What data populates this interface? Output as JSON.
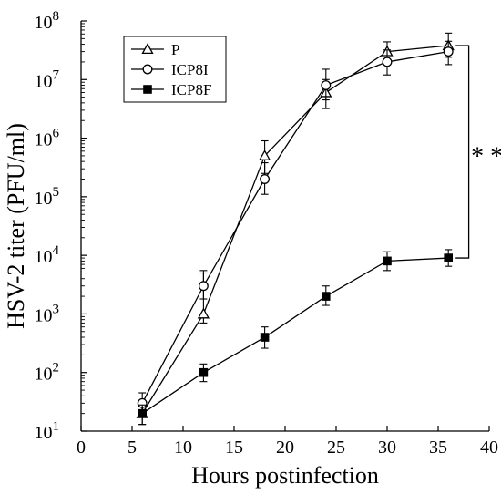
{
  "chart_data": {
    "type": "line",
    "xlabel": "Hours postinfection",
    "ylabel": "HSV-2 titer (PFU/ml)",
    "x_scale": "linear",
    "y_scale": "log",
    "xlim": [
      0,
      40
    ],
    "ylim": [
      10,
      100000000
    ],
    "x_ticks": [
      0,
      5,
      10,
      15,
      20,
      25,
      30,
      35,
      40
    ],
    "y_ticks": [
      {
        "value": 10,
        "base": "10",
        "exp": "1"
      },
      {
        "value": 100,
        "base": "10",
        "exp": "2"
      },
      {
        "value": 1000,
        "base": "10",
        "exp": "3"
      },
      {
        "value": 10000,
        "base": "10",
        "exp": "4"
      },
      {
        "value": 100000,
        "base": "10",
        "exp": "5"
      },
      {
        "value": 1000000,
        "base": "10",
        "exp": "6"
      },
      {
        "value": 10000000,
        "base": "10",
        "exp": "7"
      },
      {
        "value": 100000000,
        "base": "10",
        "exp": "8"
      }
    ],
    "grid": false,
    "legend_position": "top-left",
    "x": [
      6,
      12,
      18,
      24,
      30,
      36
    ],
    "series": [
      {
        "name": "P",
        "marker": "triangle-open",
        "values": [
          20,
          1000,
          500000,
          6000000,
          30000000,
          38000000
        ],
        "error_low": [
          13,
          700,
          250000,
          3200000,
          20000000,
          24000000
        ],
        "error_high": [
          33,
          5500,
          900000,
          10000000,
          44000000,
          62000000
        ]
      },
      {
        "name": "ICP8I",
        "marker": "circle-open",
        "values": [
          30,
          3000,
          200000,
          8000000,
          20000000,
          30000000
        ],
        "error_low": [
          20,
          1800,
          110000,
          4500000,
          12000000,
          18000000
        ],
        "error_high": [
          45,
          5000,
          380000,
          15000000,
          32000000,
          45000000
        ]
      },
      {
        "name": "ICP8F",
        "marker": "square-filled",
        "values": [
          20,
          100,
          400,
          2000,
          8000,
          9000
        ],
        "error_low": [
          13,
          70,
          260,
          1400,
          5500,
          6500
        ],
        "error_high": [
          28,
          140,
          600,
          3000,
          11500,
          12500
        ]
      }
    ],
    "annotation": {
      "text": "* *",
      "bracket_from": 38000000,
      "bracket_to": 9000
    }
  }
}
